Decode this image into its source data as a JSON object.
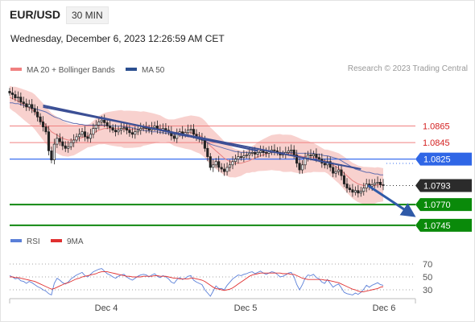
{
  "header": {
    "symbol": "EUR/USD",
    "interval": "30 MIN",
    "datetime": "Wednesday, December 6, 2023 12:26:59 AM CET",
    "credit": "Research © 2023 Trading Central"
  },
  "chart_data": [
    {
      "type": "candlestick",
      "title": "",
      "legend": [
        {
          "label": "MA 20 + Bollinger Bands",
          "color": "#f08080"
        },
        {
          "label": "MA 50",
          "color": "#2b4f90"
        }
      ],
      "x_ticks": [
        "Dec 4",
        "Dec 5",
        "Dec 6"
      ],
      "ylim": [
        1.074,
        1.092
      ],
      "close_series": [
        1.0905,
        1.0903,
        1.0899,
        1.09,
        1.0894,
        1.0892,
        1.0888,
        1.0891,
        1.0886,
        1.0882,
        1.0876,
        1.087,
        1.0864,
        1.0858,
        1.0835,
        1.0824,
        1.0843,
        1.085,
        1.0846,
        1.0841,
        1.0838,
        1.084,
        1.0845,
        1.0848,
        1.0852,
        1.0855,
        1.0858,
        1.0852,
        1.085,
        1.0855,
        1.0862,
        1.0866,
        1.087,
        1.0872,
        1.0869,
        1.0865,
        1.0863,
        1.086,
        1.0858,
        1.086,
        1.0862,
        1.0863,
        1.086,
        1.0857,
        1.0855,
        1.0858,
        1.086,
        1.0862,
        1.0863,
        1.0862,
        1.086,
        1.0863,
        1.0865,
        1.0861,
        1.086,
        1.0862,
        1.086,
        1.0858,
        1.0853,
        1.085,
        1.0855,
        1.0858,
        1.0855,
        1.0857,
        1.086,
        1.0861,
        1.0855,
        1.0852,
        1.085,
        1.0848,
        1.0838,
        1.0828,
        1.0815,
        1.0818,
        1.0822,
        1.0815,
        1.0813,
        1.081,
        1.0815,
        1.0818,
        1.0822,
        1.0825,
        1.0828,
        1.0827,
        1.0829,
        1.083,
        1.0832,
        1.0833,
        1.0831,
        1.0833,
        1.0835,
        1.0833,
        1.0832,
        1.0834,
        1.0836,
        1.0835,
        1.0833,
        1.083,
        1.0831,
        1.0833,
        1.0835,
        1.0836,
        1.083,
        1.082,
        1.0812,
        1.0818,
        1.0826,
        1.083,
        1.0829,
        1.0831,
        1.0827,
        1.0825,
        1.082,
        1.0818,
        1.0822,
        1.0815,
        1.0808,
        1.081,
        1.0812,
        1.0805,
        1.0795,
        1.079,
        1.0788,
        1.0785,
        1.0787,
        1.0784,
        1.0786,
        1.079,
        1.0795,
        1.0792,
        1.0794,
        1.0796,
        1.0797,
        1.0794,
        1.0793
      ],
      "ma20_series": [
        1.09,
        1.0898,
        1.0897,
        1.0895,
        1.0893,
        1.0891,
        1.0889,
        1.0887,
        1.0885,
        1.0882,
        1.0878,
        1.0874,
        1.087,
        1.0866,
        1.0862,
        1.0858,
        1.0856,
        1.0854,
        1.0852,
        1.085,
        1.0849,
        1.0848,
        1.0848,
        1.0848,
        1.0849,
        1.085,
        1.0851,
        1.0852,
        1.0853,
        1.0854,
        1.0856,
        1.0858,
        1.086,
        1.0861,
        1.0862,
        1.0862,
        1.0862,
        1.0862,
        1.0862,
        1.0862,
        1.0862,
        1.0861,
        1.0861,
        1.0861,
        1.0861,
        1.0861,
        1.0861,
        1.0861,
        1.0862,
        1.0862,
        1.0862,
        1.0862,
        1.0862,
        1.0862,
        1.0862,
        1.0861,
        1.086,
        1.0859,
        1.0858,
        1.0857,
        1.0857,
        1.0857,
        1.0857,
        1.0857,
        1.0857,
        1.0857,
        1.0856,
        1.0855,
        1.0854,
        1.0852,
        1.0849,
        1.0845,
        1.0841,
        1.0838,
        1.0835,
        1.0832,
        1.0829,
        1.0826,
        1.0824,
        1.0822,
        1.0821,
        1.082,
        1.082,
        1.082,
        1.0821,
        1.0822,
        1.0823,
        1.0825,
        1.0826,
        1.0828,
        1.0829,
        1.083,
        1.0831,
        1.0832,
        1.0833,
        1.0833,
        1.0833,
        1.0833,
        1.0832,
        1.0832,
        1.0832,
        1.0832,
        1.0831,
        1.083,
        1.0829,
        1.0828,
        1.0828,
        1.0828,
        1.0827,
        1.0827,
        1.0826,
        1.0825,
        1.0824,
        1.0823,
        1.0822,
        1.082,
        1.0818,
        1.0816,
        1.0814,
        1.0811,
        1.0808,
        1.0805,
        1.0802,
        1.0799,
        1.0797,
        1.0795,
        1.0794,
        1.0793,
        1.0793,
        1.0793,
        1.0793,
        1.0793,
        1.0794,
        1.0794,
        1.0794
      ],
      "ma50_series": [
        1.0893,
        1.0893,
        1.0892,
        1.0892,
        1.0891,
        1.089,
        1.0889,
        1.0888,
        1.0887,
        1.0886,
        1.0885,
        1.0884,
        1.0883,
        1.0882,
        1.088,
        1.0878,
        1.0876,
        1.0875,
        1.0874,
        1.0872,
        1.0871,
        1.087,
        1.0869,
        1.0868,
        1.0868,
        1.0867,
        1.0867,
        1.0866,
        1.0866,
        1.0866,
        1.0866,
        1.0866,
        1.0866,
        1.0866,
        1.0866,
        1.0866,
        1.0865,
        1.0865,
        1.0865,
        1.0865,
        1.0865,
        1.0864,
        1.0864,
        1.0863,
        1.0863,
        1.0862,
        1.0861,
        1.086,
        1.086,
        1.0859,
        1.0859,
        1.0858,
        1.0858,
        1.0858,
        1.0857,
        1.0857,
        1.0856,
        1.0856,
        1.0855,
        1.0855,
        1.0854,
        1.0854,
        1.0853,
        1.0853,
        1.0852,
        1.0852,
        1.0851,
        1.085,
        1.0849,
        1.0848,
        1.0847,
        1.0845,
        1.0843,
        1.0842,
        1.0841,
        1.084,
        1.0839,
        1.0838,
        1.0837,
        1.0836,
        1.0835,
        1.0834,
        1.0834,
        1.0833,
        1.0833,
        1.0833,
        1.0833,
        1.0833,
        1.0833,
        1.0833,
        1.0833,
        1.0833,
        1.0833,
        1.0833,
        1.0833,
        1.0833,
        1.0833,
        1.0833,
        1.0833,
        1.0833,
        1.0833,
        1.0833,
        1.0833,
        1.0832,
        1.0832,
        1.0832,
        1.0832,
        1.0832,
        1.0832,
        1.0832,
        1.0831,
        1.0831,
        1.083,
        1.0829,
        1.0829,
        1.0828,
        1.0827,
        1.0826,
        1.0825,
        1.0823,
        1.0821,
        1.0819,
        1.0817,
        1.0815,
        1.0813,
        1.0812,
        1.0811,
        1.081,
        1.0809,
        1.0809,
        1.0808,
        1.0807,
        1.0807,
        1.0806,
        1.0806
      ],
      "band_width": 0.0018,
      "levels": [
        {
          "value": "1.0865",
          "type": "resistance",
          "color": "#f08080"
        },
        {
          "value": "1.0845",
          "type": "resistance",
          "color": "#f08080"
        },
        {
          "value": "1.0825",
          "type": "pivot",
          "color": "#3a6ff0"
        },
        {
          "value": "1.0793",
          "type": "last",
          "color": "#333333"
        },
        {
          "value": "1.0770",
          "type": "support",
          "color": "#118811"
        },
        {
          "value": "1.0745",
          "type": "support",
          "color": "#118811"
        }
      ],
      "trendlines": [
        {
          "from": [
            12,
            1.089
          ],
          "to": [
            89,
            1.0835
          ]
        },
        {
          "from": [
            12,
            1.0888
          ],
          "to": [
            126,
            1.0813
          ]
        }
      ],
      "forecast_arrow": {
        "from": [
          128,
          1.0793
        ],
        "to": [
          139,
          1.075
        ]
      }
    },
    {
      "type": "line",
      "legend": [
        {
          "label": "RSI",
          "color": "#5a7fd8"
        },
        {
          "label": "9MA",
          "color": "#e03030"
        }
      ],
      "yticks": [
        "70",
        "50",
        "30"
      ],
      "ylim": [
        20,
        80
      ],
      "rsi_series": [
        52,
        50,
        47,
        48,
        44,
        43,
        40,
        43,
        41,
        38,
        35,
        33,
        30,
        28,
        24,
        22,
        40,
        48,
        45,
        41,
        39,
        42,
        47,
        50,
        53,
        55,
        57,
        52,
        50,
        54,
        58,
        60,
        62,
        63,
        59,
        55,
        53,
        50,
        48,
        51,
        53,
        54,
        50,
        47,
        45,
        48,
        51,
        53,
        54,
        53,
        50,
        53,
        55,
        51,
        49,
        52,
        50,
        47,
        42,
        40,
        46,
        49,
        46,
        48,
        51,
        52,
        45,
        42,
        40,
        38,
        30,
        25,
        20,
        28,
        36,
        32,
        32,
        30,
        37,
        42,
        47,
        50,
        53,
        52,
        54,
        55,
        57,
        58,
        55,
        57,
        59,
        56,
        54,
        56,
        58,
        57,
        54,
        50,
        51,
        53,
        56,
        57,
        50,
        38,
        30,
        38,
        48,
        53,
        52,
        54,
        49,
        47,
        42,
        40,
        46,
        40,
        34,
        37,
        39,
        33,
        26,
        24,
        23,
        22,
        25,
        23,
        26,
        31,
        37,
        34,
        37,
        39,
        41,
        38,
        37
      ],
      "ma9_series": [
        50,
        50,
        49,
        49,
        48,
        47,
        46,
        45,
        44,
        43,
        41,
        39,
        37,
        35,
        33,
        31,
        32,
        34,
        36,
        38,
        40,
        41,
        43,
        45,
        47,
        48,
        50,
        51,
        52,
        53,
        54,
        55,
        57,
        58,
        58,
        58,
        57,
        56,
        55,
        54,
        53,
        52,
        51,
        51,
        50,
        50,
        50,
        50,
        51,
        51,
        51,
        51,
        52,
        52,
        51,
        51,
        51,
        50,
        49,
        48,
        48,
        47,
        47,
        47,
        47,
        48,
        48,
        47,
        46,
        45,
        43,
        40,
        37,
        34,
        32,
        31,
        30,
        29,
        30,
        31,
        33,
        36,
        39,
        42,
        45,
        48,
        51,
        53,
        54,
        55,
        56,
        56,
        56,
        56,
        56,
        56,
        56,
        56,
        55,
        55,
        55,
        54,
        54,
        52,
        50,
        48,
        47,
        46,
        46,
        46,
        46,
        46,
        46,
        45,
        45,
        44,
        43,
        42,
        41,
        39,
        37,
        35,
        33,
        31,
        30,
        28,
        27,
        27,
        28,
        29,
        30,
        31,
        32,
        34,
        35
      ]
    }
  ]
}
